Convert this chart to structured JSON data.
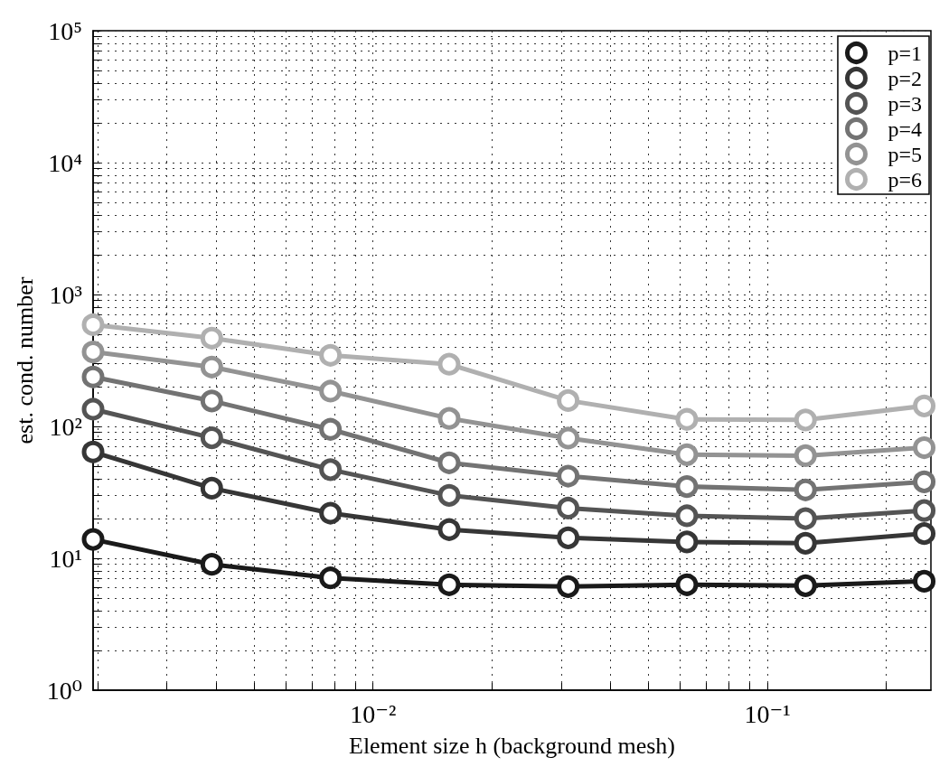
{
  "chart_data": {
    "type": "line",
    "xlabel": "Element size h (background mesh)",
    "ylabel": "est. cond. number",
    "x": [
      0.00195,
      0.0039,
      0.0078,
      0.0156,
      0.03125,
      0.0625,
      0.125,
      0.25
    ],
    "series": [
      {
        "name": "p=1",
        "color": "#1a1a1a",
        "values": [
          13.9,
          9.0,
          7.1,
          6.3,
          6.1,
          6.3,
          6.2,
          6.7
        ]
      },
      {
        "name": "p=2",
        "color": "#363636",
        "values": [
          64,
          34,
          22,
          16.5,
          14.3,
          13.3,
          13,
          15.4
        ]
      },
      {
        "name": "p=3",
        "color": "#545454",
        "values": [
          135,
          82,
          47,
          30,
          24,
          21,
          20,
          23
        ]
      },
      {
        "name": "p=4",
        "color": "#737373",
        "values": [
          237,
          156,
          95,
          53,
          42,
          35,
          33,
          38
        ]
      },
      {
        "name": "p=5",
        "color": "#939393",
        "values": [
          367,
          282,
          185,
          115,
          81.5,
          61,
          60,
          69
        ]
      },
      {
        "name": "p=6",
        "color": "#b0b0b0",
        "values": [
          590,
          467,
          346,
          296,
          157,
          113,
          112,
          143
        ]
      }
    ],
    "log": "xy",
    "xlim": [
      0.00195,
      0.26
    ],
    "ylim": [
      1,
      100000
    ],
    "xticks": [
      {
        "value": 0.01,
        "label": "10⁻²"
      },
      {
        "value": 0.1,
        "label": "10⁻¹"
      }
    ],
    "yticks": [
      {
        "value": 1,
        "label": "10⁰"
      },
      {
        "value": 10,
        "label": "10¹"
      },
      {
        "value": 100,
        "label": "10²"
      },
      {
        "value": 1000,
        "label": "10³"
      },
      {
        "value": 10000,
        "label": "10⁴"
      },
      {
        "value": 100000,
        "label": "10⁵"
      }
    ],
    "grid": true,
    "legend": "top right",
    "marker": "circle",
    "line_style": "solid"
  }
}
